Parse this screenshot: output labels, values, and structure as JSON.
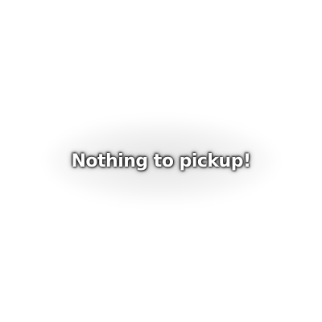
{
  "toast": {
    "message": "Nothing to pickup!",
    "text_color": "#ffffff",
    "outline_color": "#000000"
  },
  "background_color": "#ffffff"
}
